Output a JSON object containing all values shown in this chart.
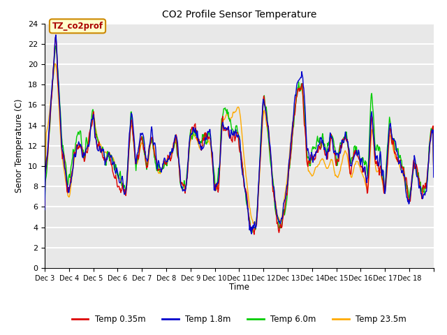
{
  "title": "CO2 Profile Sensor Temperature",
  "ylabel": "Senor Temperature (C)",
  "xlabel": "Time",
  "annotation_label": "TZ_co2prof",
  "annotation_color": "#aa0000",
  "annotation_bg": "#ffffcc",
  "annotation_border": "#cc8800",
  "ylim": [
    0,
    24
  ],
  "yticks": [
    0,
    2,
    4,
    6,
    8,
    10,
    12,
    14,
    16,
    18,
    20,
    22,
    24
  ],
  "xtick_labels": [
    "Dec 3",
    "Dec 4",
    "Dec 5",
    "Dec 6",
    "Dec 7",
    "Dec 8",
    "Dec 9",
    "Dec 10",
    "Dec 11",
    "Dec 12",
    "Dec 13",
    "Dec 14",
    "Dec 15",
    "Dec 16",
    "Dec 17",
    "Dec 18"
  ],
  "bg_color": "#e8e8e8",
  "grid_color": "#ffffff",
  "series": {
    "Temp 0.35m": {
      "color": "#dd0000",
      "lw": 1.0
    },
    "Temp 1.8m": {
      "color": "#0000cc",
      "lw": 1.0
    },
    "Temp 6.0m": {
      "color": "#00cc00",
      "lw": 1.0
    },
    "Temp 23.5m": {
      "color": "#ffaa00",
      "lw": 1.0
    }
  },
  "legend_labels": [
    "Temp 0.35m",
    "Temp 1.8m",
    "Temp 6.0m",
    "Temp 23.5m"
  ],
  "legend_colors": [
    "#dd0000",
    "#0000cc",
    "#00cc00",
    "#ffaa00"
  ],
  "n_days": 16,
  "pts_per_day": 48
}
